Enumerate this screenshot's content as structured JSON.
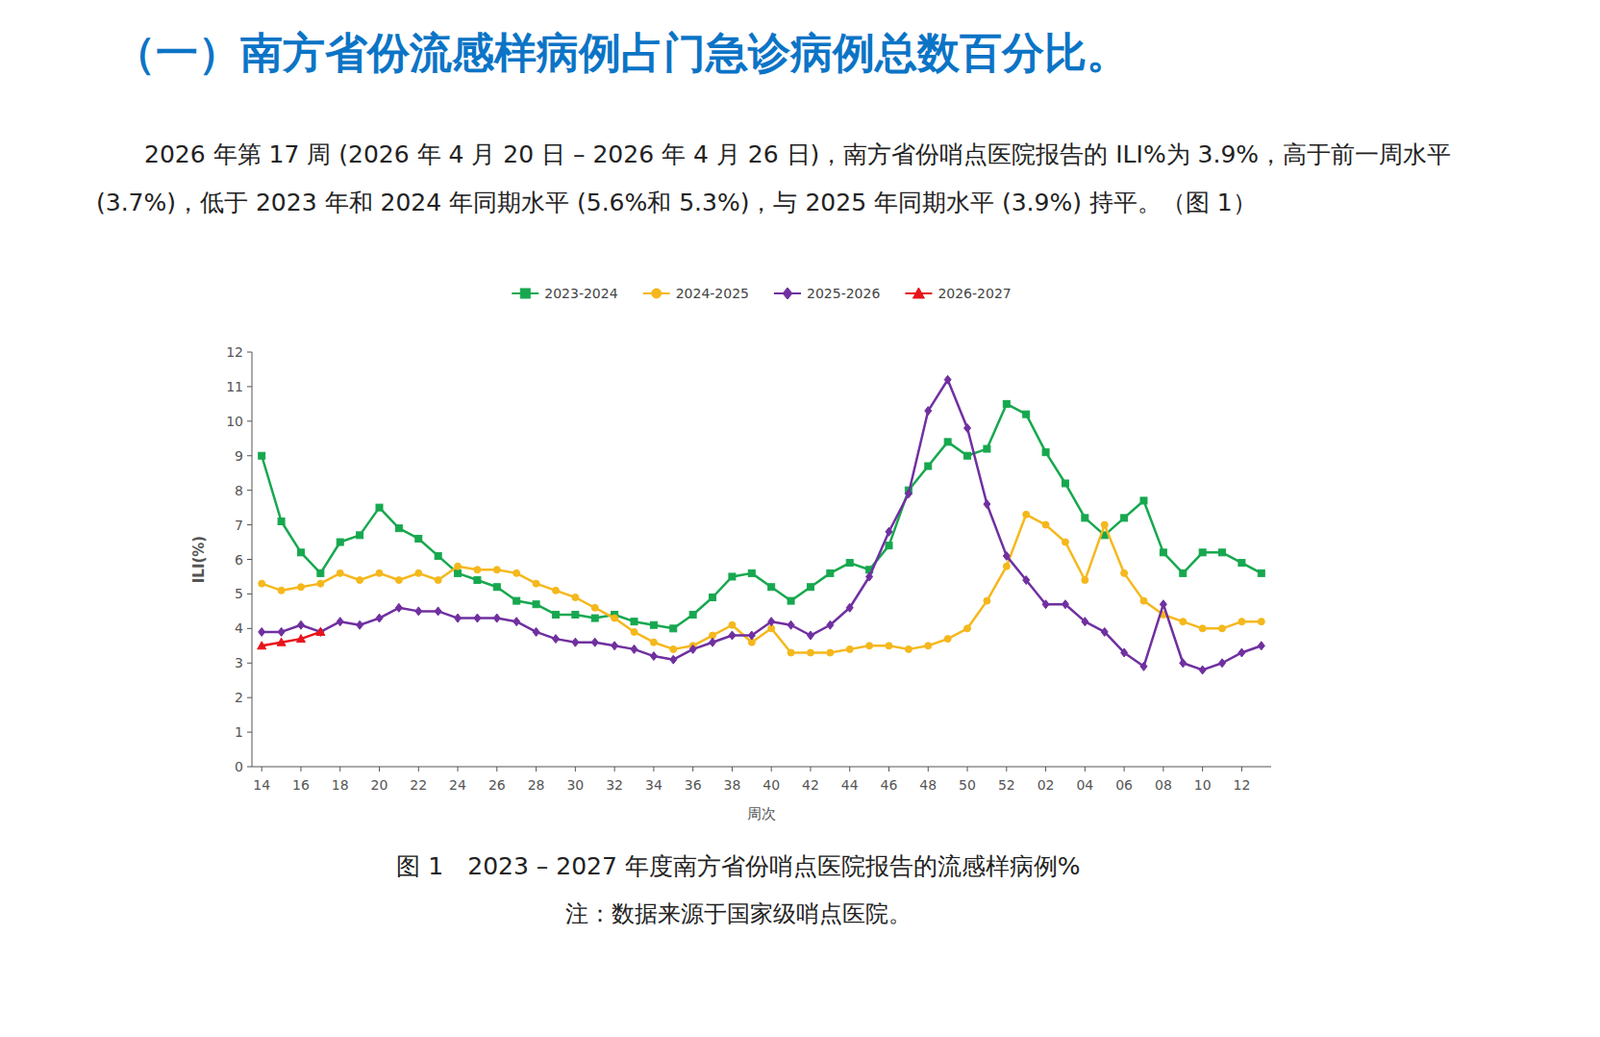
{
  "title": "（一）南方省份流感样病例占门急诊病例总数百分比。",
  "paragraph": "2026 年第 17 周 (2026 年 4 月 20 日 – 2026 年 4 月 26 日)，南方省份哨点医院报告的 ILI%为 3.9%，高于前一周水平 (3.7%)，低于 2023 年和 2024 年同期水平 (5.6%和 5.3%)，与 2025 年同期水平 (3.9%) 持平。（图 1）",
  "caption": "图 1　2023 – 2027 年度南方省份哨点医院报告的流感样病例%",
  "note": "注：数据来源于国家级哨点医院。",
  "chart_data": {
    "type": "line",
    "x_label": "周次",
    "y_label": "ILI(%)",
    "categories": [
      "14",
      null,
      "16",
      null,
      "18",
      null,
      "20",
      null,
      "22",
      null,
      "24",
      null,
      "26",
      null,
      "28",
      null,
      "30",
      null,
      "32",
      null,
      "34",
      null,
      "36",
      null,
      "38",
      null,
      "40",
      null,
      "42",
      null,
      "44",
      null,
      "46",
      null,
      "48",
      null,
      "50",
      null,
      "52",
      null,
      "02",
      null,
      "04",
      null,
      "06",
      null,
      "08",
      null,
      "10",
      null,
      "12",
      null
    ],
    "ylim": [
      0,
      12
    ],
    "yticks": [
      0,
      1,
      2,
      3,
      4,
      5,
      6,
      7,
      8,
      9,
      10,
      11,
      12
    ],
    "grid": false,
    "legend": "top",
    "series": [
      {
        "name": "2023-2024",
        "color": "#17a84f",
        "marker": "square",
        "values": [
          9.0,
          7.1,
          6.2,
          5.6,
          6.5,
          6.7,
          7.5,
          6.9,
          6.6,
          6.1,
          5.6,
          5.4,
          5.2,
          4.8,
          4.7,
          4.4,
          4.4,
          4.3,
          4.4,
          4.2,
          4.1,
          4.0,
          4.4,
          4.9,
          5.5,
          5.6,
          5.2,
          4.8,
          5.2,
          5.6,
          5.9,
          5.7,
          6.4,
          8.0,
          8.7,
          9.4,
          9.0,
          9.2,
          10.5,
          10.2,
          9.1,
          8.2,
          7.2,
          6.7,
          7.2,
          7.7,
          6.2,
          5.6,
          6.2,
          6.2,
          5.9,
          5.6
        ]
      },
      {
        "name": "2024-2025",
        "color": "#f5b81c",
        "marker": "circle",
        "values": [
          5.3,
          5.1,
          5.2,
          5.3,
          5.6,
          5.4,
          5.6,
          5.4,
          5.6,
          5.4,
          5.8,
          5.7,
          5.7,
          5.6,
          5.3,
          5.1,
          4.9,
          4.6,
          4.3,
          3.9,
          3.6,
          3.4,
          3.5,
          3.8,
          4.1,
          3.6,
          4.0,
          3.3,
          3.3,
          3.3,
          3.4,
          3.5,
          3.5,
          3.4,
          3.5,
          3.7,
          4.0,
          4.8,
          5.8,
          7.3,
          7.0,
          6.5,
          5.4,
          7.0,
          5.6,
          4.8,
          4.4,
          4.2,
          4.0,
          4.0,
          4.2,
          4.2
        ]
      },
      {
        "name": "2025-2026",
        "color": "#7030a0",
        "marker": "diamond",
        "values": [
          3.9,
          3.9,
          4.1,
          3.9,
          4.2,
          4.1,
          4.3,
          4.6,
          4.5,
          4.5,
          4.3,
          4.3,
          4.3,
          4.2,
          3.9,
          3.7,
          3.6,
          3.6,
          3.5,
          3.4,
          3.2,
          3.1,
          3.4,
          3.6,
          3.8,
          3.8,
          4.2,
          4.1,
          3.8,
          4.1,
          4.6,
          5.5,
          6.8,
          7.9,
          10.3,
          11.2,
          9.8,
          7.6,
          6.1,
          5.4,
          4.7,
          4.7,
          4.2,
          3.9,
          3.3,
          2.9,
          4.7,
          3.0,
          2.8,
          3.0,
          3.3,
          3.5
        ]
      },
      {
        "name": "2026-2027",
        "color": "#e8141b",
        "marker": "triangle",
        "values": [
          3.5,
          3.6,
          3.7,
          3.9,
          null,
          null,
          null,
          null,
          null,
          null,
          null,
          null,
          null,
          null,
          null,
          null,
          null,
          null,
          null,
          null,
          null,
          null,
          null,
          null,
          null,
          null,
          null,
          null,
          null,
          null,
          null,
          null,
          null,
          null,
          null,
          null,
          null,
          null,
          null,
          null,
          null,
          null,
          null,
          null,
          null,
          null,
          null,
          null,
          null,
          null,
          null,
          null
        ]
      }
    ]
  }
}
